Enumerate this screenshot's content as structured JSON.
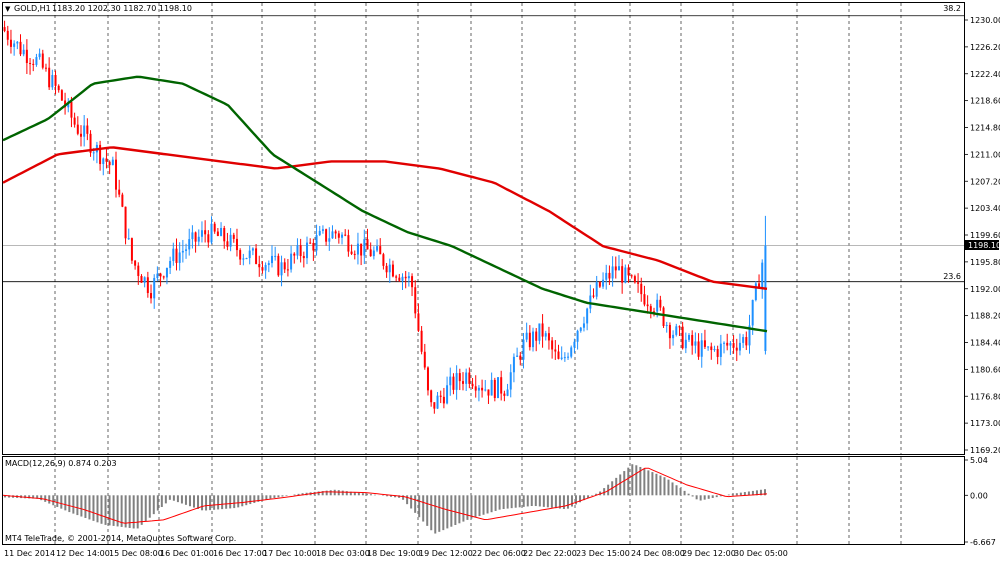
{
  "header": {
    "symbol_text": "GOLD,H1",
    "ohlc_text": "1183.20 1202.30 1182.70 1198.10",
    "corner_value": "38.2"
  },
  "level_label": "23.6",
  "current_price": "1198.10",
  "price_axis": [
    "1230.00",
    "1226.20",
    "1222.40",
    "1218.60",
    "1214.80",
    "1211.00",
    "1207.20",
    "1203.40",
    "1199.60",
    "1195.80",
    "1192.00",
    "1188.20",
    "1184.40",
    "1180.60",
    "1176.80",
    "1173.00",
    "1169.20"
  ],
  "macd": {
    "label": "MACD(12,26,9) 0.874 0.203",
    "axis": [
      "5.04",
      "0.00",
      "-6.667"
    ]
  },
  "watermark": "MT4 TeleTrade, © 2001-2014, MetaQuotes Software Corp.",
  "time_axis": [
    "11 Dec 2014",
    "12 Dec 14:00",
    "15 Dec 08:00",
    "16 Dec 01:00",
    "16 Dec 17:00",
    "17 Dec 10:00",
    "18 Dec 03:00",
    "18 Dec 19:00",
    "19 Dec 12:00",
    "22 Dec 06:00",
    "22 Dec 22:00",
    "23 Dec 15:00",
    "24 Dec 08:00",
    "29 Dec 12:00",
    "30 Dec 05:00"
  ],
  "colors": {
    "bull": "#1e90ff",
    "bear": "#ff0000",
    "ma_fast": "#006400",
    "ma_slow": "#e00000",
    "histogram": "#808080",
    "signal": "#ff0000",
    "price_tag": "#000000"
  },
  "chart_data": {
    "type": "candlestick",
    "symbol": "GOLD",
    "timeframe": "H1",
    "last_bar": {
      "open": 1183.2,
      "high": 1202.3,
      "low": 1182.7,
      "close": 1198.1
    },
    "price_anchors": [
      1229,
      1226,
      1224,
      1220,
      1215,
      1212,
      1209,
      1196,
      1192,
      1196,
      1198,
      1200,
      1199,
      1197,
      1196,
      1195,
      1197,
      1199,
      1200,
      1198,
      1197,
      1195,
      1193,
      1175,
      1178,
      1180,
      1178,
      1178,
      1184,
      1186,
      1181,
      1187,
      1192,
      1195,
      1192,
      1190,
      1186,
      1184,
      1183,
      1184,
      1185,
      1198
    ],
    "ma_fast_anchors": [
      1213,
      1216,
      1221,
      1222,
      1221,
      1218,
      1211,
      1207,
      1203,
      1200,
      1198,
      1195,
      1192,
      1190,
      1189,
      1188,
      1187,
      1186
    ],
    "ma_slow_anchors": [
      1207,
      1211,
      1212,
      1211,
      1210,
      1209,
      1210,
      1210,
      1209,
      1207,
      1203,
      1198,
      1196,
      1193,
      1192
    ],
    "macd_hist_anchors": [
      -0.3,
      -0.5,
      -2.5,
      -4.2,
      -4.8,
      -0.6,
      -2.2,
      -1.8,
      -0.5,
      0.3,
      0.8,
      0.2,
      -0.4,
      -5.5,
      -3.5,
      -2.0,
      -1.5,
      -2.0,
      0.5,
      4.5,
      2.5,
      -0.8,
      0.2,
      0.874
    ],
    "macd_signal_anchors": [
      0,
      -0.5,
      -2.0,
      -4.0,
      -3.5,
      -1.5,
      -1.0,
      -0.3,
      0.5,
      0.4,
      -0.2,
      -2.0,
      -3.5,
      -2.5,
      -1.5,
      0.5,
      4.0,
      1.5,
      -0.2,
      0.203
    ],
    "ylim": [
      1169.2,
      1230.0
    ],
    "macd_ylim": [
      -6.667,
      5.04
    ],
    "levels": [
      {
        "label": "38.2",
        "price": 1230.6
      },
      {
        "label": "23.6",
        "price": 1193.0
      },
      {
        "label": "",
        "price": 1198.1
      }
    ]
  }
}
